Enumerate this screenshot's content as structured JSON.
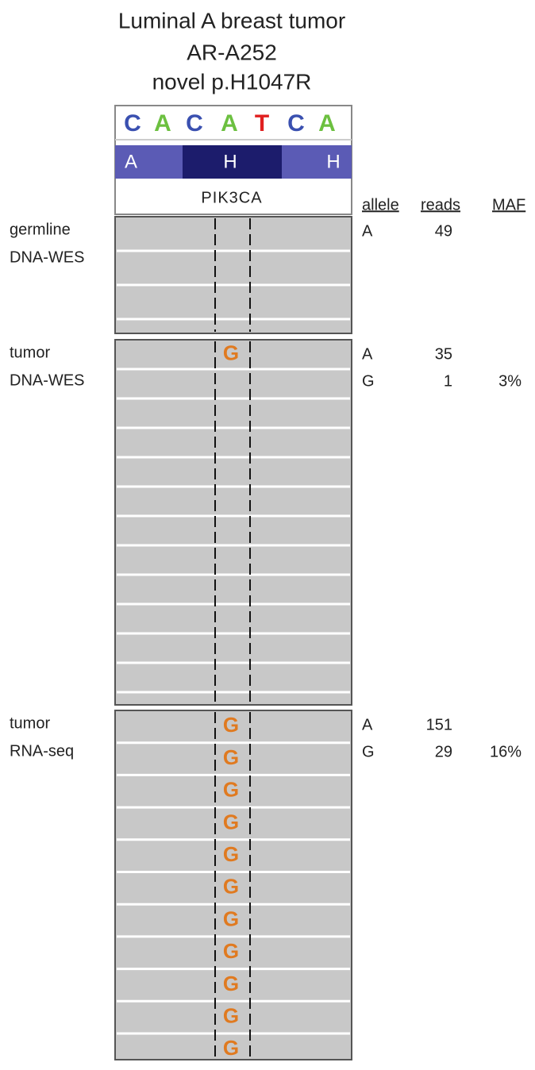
{
  "header": {
    "title_lines": [
      "Luminal A breast tumor",
      "AR-A252",
      "novel p.H1047R"
    ]
  },
  "reference": {
    "bases": [
      "C",
      "A",
      "C",
      "A",
      "T",
      "C",
      "A"
    ],
    "amino_acids": [
      "A",
      "H",
      "H"
    ],
    "gene": "PIK3CA"
  },
  "table_header": [
    "allele",
    "reads",
    "MAF"
  ],
  "panels": [
    {
      "label_lines": [
        "germline",
        "DNA-WES"
      ],
      "alleles": [
        {
          "allele": "A",
          "reads": "49"
        }
      ],
      "mismatches": []
    },
    {
      "label_lines": [
        "tumor",
        "DNA-WES"
      ],
      "alleles": [
        {
          "allele": "A",
          "reads": "35"
        },
        {
          "allele": "G",
          "reads": "1",
          "maf": "3%"
        }
      ],
      "mismatches": [
        "G"
      ]
    },
    {
      "label_lines": [
        "tumor",
        "RNA-seq"
      ],
      "alleles": [
        {
          "allele": "A",
          "reads": "151"
        },
        {
          "allele": "G",
          "reads": "29",
          "maf": "16%"
        }
      ],
      "mismatches": [
        "G",
        "G",
        "G",
        "G",
        "G",
        "G",
        "G",
        "G",
        "G",
        "G",
        "G"
      ]
    }
  ]
}
